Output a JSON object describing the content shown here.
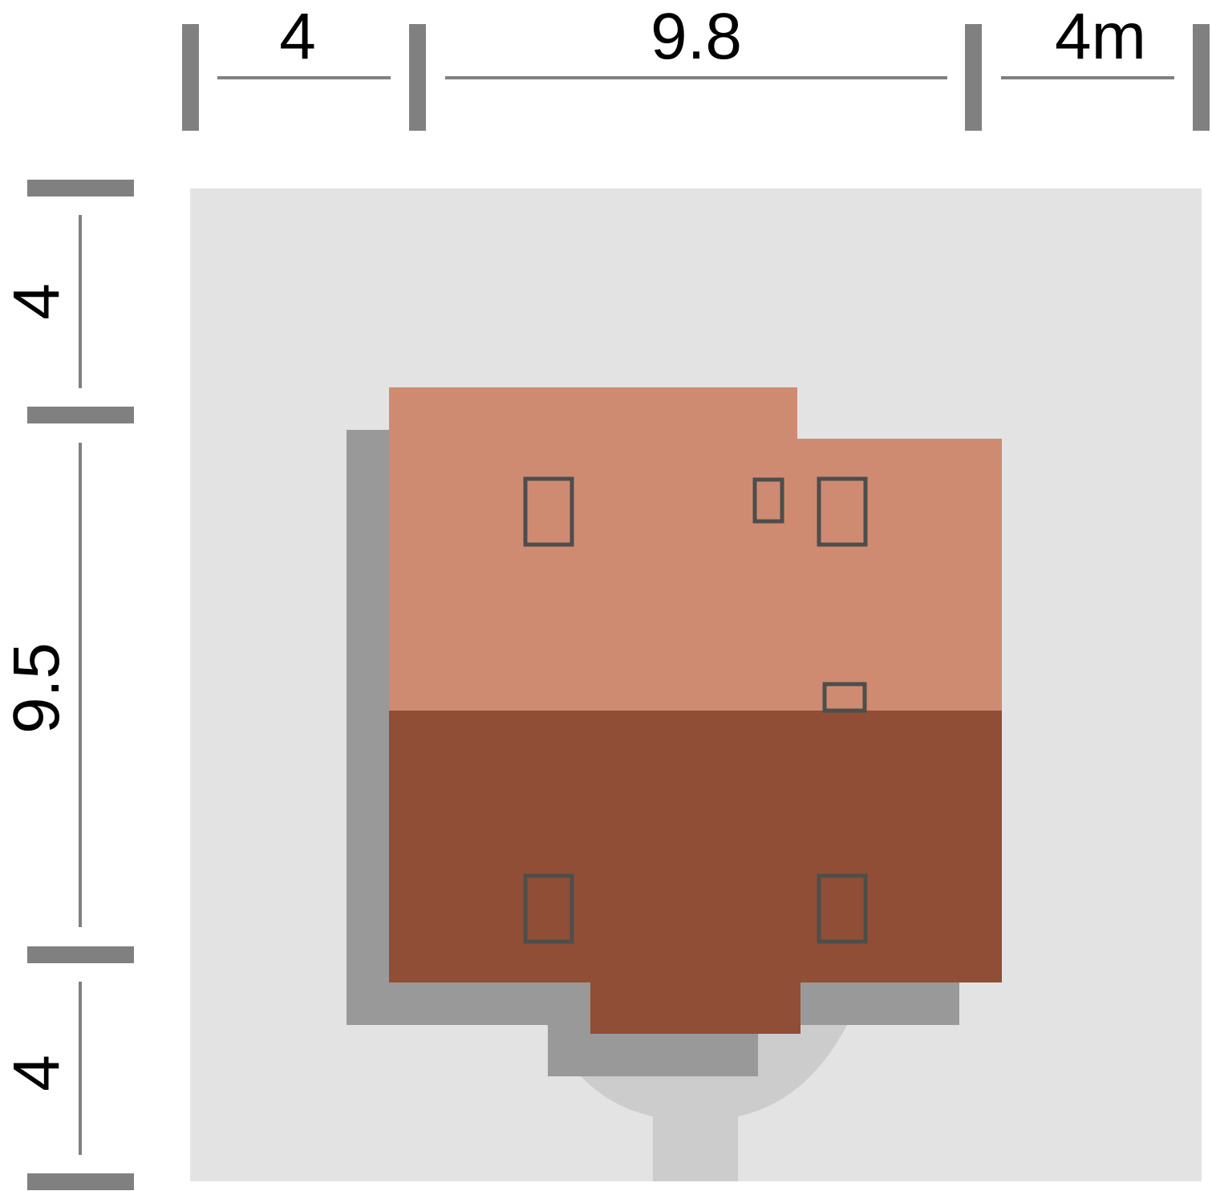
{
  "dimensions": {
    "top": [
      "4",
      "9.8",
      "4m"
    ],
    "left": [
      "4",
      "9.5",
      "4"
    ]
  },
  "colors": {
    "plot": "#e3e3e3",
    "shadow": "#999999",
    "driveway": "#cccccc",
    "roof_light": "#ce8b71",
    "roof_dark": "#8f4e35",
    "window_stroke": "#4d4d4d",
    "dimension_bar": "#808080"
  }
}
